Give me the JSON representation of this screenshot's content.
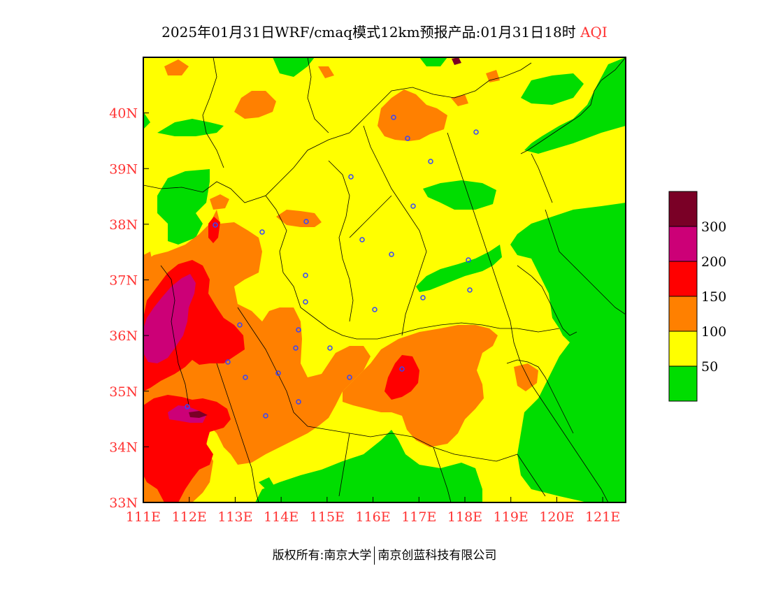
{
  "title": {
    "main": "2025年01月31日WRF/cmaq模式12km预报产品:01月31日18时",
    "variable": "AQI"
  },
  "map": {
    "lon_range": [
      111,
      121.5
    ],
    "lat_range": [
      33,
      41
    ],
    "x_ticks": [
      "111E",
      "112E",
      "113E",
      "114E",
      "115E",
      "116E",
      "117E",
      "118E",
      "119E",
      "120E",
      "121E"
    ],
    "y_ticks": [
      "33N",
      "34N",
      "35N",
      "36N",
      "37N",
      "38N",
      "39N",
      "40N"
    ],
    "colors": {
      "good": "#00dd00",
      "moderate": "#ffff00",
      "usg": "#ff8000",
      "unhealthy": "#ff0000",
      "very_unhealthy": "#cc0077",
      "hazardous": "#7a0026",
      "boundary": "#000000",
      "city_marker": "#3344ff"
    }
  },
  "legend": {
    "labels": [
      "50",
      "100",
      "150",
      "200",
      "300"
    ],
    "colors": [
      "#00dd00",
      "#ffff00",
      "#ff8000",
      "#ff0000",
      "#cc0077",
      "#7a0026"
    ]
  },
  "footer": {
    "left": "版权所有:南京大学",
    "right": "南京创蓝科技有限公司"
  }
}
